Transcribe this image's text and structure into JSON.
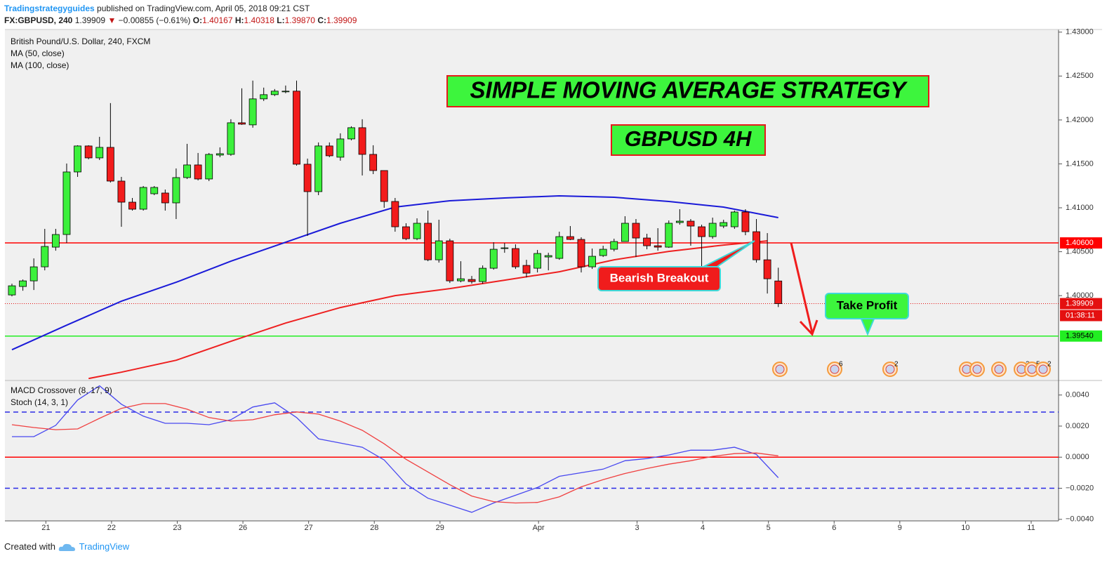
{
  "header": {
    "author": "Tradingstrategyguides",
    "published": "published on TradingView.com, April 05, 2018 09:21 CST",
    "symbol": "FX:GBPUSD, 240",
    "last": "1.39909",
    "arrow": "▼",
    "change": "−0.00855 (−0.61%)",
    "o_label": "O:",
    "o": "1.40167",
    "h_label": "H:",
    "h": "1.40318",
    "l_label": "L:",
    "l": "1.39870",
    "c_label": "C:",
    "c": "1.39909"
  },
  "footer": {
    "created": "Created with",
    "brand": "TradingView"
  },
  "chart_data": [
    {
      "type": "candlestick",
      "title": "British Pound/U.S. Dollar, 240, FXCM",
      "annotations": {
        "headline": "SIMPLE MOVING AVERAGE STRATEGY",
        "subheadline": "GBPUSD 4H",
        "breakout": "Bearish Breakout",
        "target": "Take Profit"
      },
      "x": [
        0,
        1,
        2,
        3,
        4,
        5,
        6,
        7,
        8,
        9,
        10,
        11,
        12,
        13,
        14,
        15,
        16,
        17,
        18,
        19,
        20,
        21,
        22,
        23,
        24,
        25,
        26,
        27,
        28,
        29,
        30,
        31,
        32,
        33,
        34,
        35,
        36,
        37,
        38,
        39,
        40,
        41,
        42,
        43,
        44,
        45,
        46,
        47,
        48,
        49,
        50,
        51,
        52,
        53,
        54,
        55,
        56,
        57,
        58,
        59,
        60,
        61,
        62,
        63,
        64,
        65,
        66,
        67,
        68,
        69,
        70
      ],
      "open": [
        1.40008,
        1.40104,
        1.40168,
        1.40328,
        1.40552,
        1.40696,
        1.41408,
        1.41704,
        1.41568,
        1.41688,
        1.41304,
        1.41064,
        1.40984,
        1.4116,
        1.41168,
        1.41056,
        1.41344,
        1.41488,
        1.41328,
        1.416,
        1.41608,
        1.41968,
        1.41944,
        1.4224,
        1.42288,
        1.4232,
        1.42328,
        1.41496,
        1.41184,
        1.41704,
        1.41576,
        1.41784,
        1.41912,
        1.41608,
        1.41424,
        1.41072,
        1.40784,
        1.40648,
        1.40824,
        1.40408,
        1.40624,
        1.40168,
        1.40184,
        1.4016,
        1.40312,
        1.40536,
        1.40536,
        1.40344,
        1.40312,
        1.4044,
        1.40424,
        1.40672,
        1.4064,
        1.40328,
        1.40456,
        1.40528,
        1.40616,
        1.40824,
        1.40656,
        1.40568,
        1.40552,
        1.40832,
        1.40848,
        1.40784,
        1.40672,
        1.40792,
        1.40784,
        1.40952,
        1.40728,
        1.40408,
        1.40167
      ],
      "high": [
        1.40136,
        1.40184,
        1.40424,
        1.4076,
        1.4076,
        1.41504,
        1.41712,
        1.41712,
        1.41808,
        1.42192,
        1.41352,
        1.41112,
        1.41248,
        1.41248,
        1.41208,
        1.41448,
        1.41728,
        1.41624,
        1.41624,
        1.41688,
        1.42008,
        1.4236,
        1.42448,
        1.42368,
        1.42352,
        1.42392,
        1.42448,
        1.4156,
        1.41744,
        1.41744,
        1.41848,
        1.41928,
        1.42008,
        1.41712,
        1.41424,
        1.41112,
        1.40824,
        1.4088,
        1.40968,
        1.40864,
        1.40648,
        1.40392,
        1.40224,
        1.40344,
        1.40608,
        1.406,
        1.40584,
        1.40408,
        1.4052,
        1.40488,
        1.40728,
        1.40792,
        1.40664,
        1.40536,
        1.40568,
        1.40648,
        1.40904,
        1.40872,
        1.40704,
        1.40768,
        1.40856,
        1.40984,
        1.40872,
        1.40808,
        1.40888,
        1.40864,
        1.40968,
        1.40984,
        1.40872,
        1.40712,
        1.40318
      ],
      "low": [
        1.39992,
        1.40056,
        1.40064,
        1.40288,
        1.40512,
        1.406,
        1.41352,
        1.41552,
        1.41544,
        1.41288,
        1.40784,
        1.40968,
        1.40968,
        1.41144,
        1.40968,
        1.40872,
        1.41328,
        1.41312,
        1.41304,
        1.41576,
        1.41592,
        1.41944,
        1.41912,
        1.42216,
        1.42272,
        1.42304,
        1.4148,
        1.4068,
        1.41144,
        1.41576,
        1.41536,
        1.41768,
        1.41368,
        1.41384,
        1.41,
        1.40728,
        1.40632,
        1.40632,
        1.40392,
        1.40376,
        1.40144,
        1.40152,
        1.40136,
        1.40136,
        1.40296,
        1.40488,
        1.40304,
        1.40208,
        1.40264,
        1.40288,
        1.40408,
        1.40632,
        1.40264,
        1.40304,
        1.4044,
        1.40504,
        1.40616,
        1.4044,
        1.40528,
        1.40512,
        1.40544,
        1.40808,
        1.40568,
        1.40184,
        1.40648,
        1.40768,
        1.4076,
        1.40688,
        1.40376,
        1.40024,
        1.3987
      ],
      "close": [
        1.40112,
        1.40168,
        1.40328,
        1.4056,
        1.40696,
        1.41408,
        1.41704,
        1.41568,
        1.41688,
        1.41304,
        1.41064,
        1.40984,
        1.41232,
        1.41232,
        1.41056,
        1.41344,
        1.41488,
        1.41328,
        1.41608,
        1.41616,
        1.41968,
        1.41952,
        1.4224,
        1.42288,
        1.42328,
        1.42328,
        1.41496,
        1.41184,
        1.41704,
        1.41592,
        1.41784,
        1.41912,
        1.41608,
        1.41424,
        1.41072,
        1.40784,
        1.40648,
        1.40824,
        1.40408,
        1.40624,
        1.40168,
        1.40192,
        1.4016,
        1.40312,
        1.40528,
        1.40544,
        1.40328,
        1.40256,
        1.4048,
        1.40456,
        1.40672,
        1.4064,
        1.40328,
        1.40448,
        1.40528,
        1.40616,
        1.40824,
        1.40656,
        1.40568,
        1.40552,
        1.40824,
        1.40848,
        1.40792,
        1.40672,
        1.40824,
        1.40832,
        1.40952,
        1.40728,
        1.40408,
        1.40192,
        1.39909
      ],
      "up_color": "#3cf03c",
      "down_color": "#f21c1c",
      "series": [
        {
          "name": "MA (50, close)",
          "color": "#1a1ad8",
          "x": [
            0,
            5,
            10,
            15,
            20,
            25,
            30,
            35,
            40,
            45,
            50,
            55,
            60,
            65,
            70
          ],
          "values": [
            1.39384,
            1.39664,
            1.39936,
            1.40152,
            1.40392,
            1.40608,
            1.40824,
            1.41008,
            1.4108,
            1.41112,
            1.41136,
            1.4112,
            1.41072,
            1.41008,
            1.40888
          ]
        },
        {
          "name": "MA (100, close)",
          "color": "#ee2020",
          "x": [
            7,
            10,
            15,
            20,
            25,
            30,
            35,
            40,
            45,
            50,
            55,
            60,
            65,
            69
          ],
          "values": [
            1.39056,
            1.39128,
            1.39264,
            1.3948,
            1.39688,
            1.39864,
            1.4,
            1.4008,
            1.40176,
            1.40272,
            1.40408,
            1.40504,
            1.40576,
            1.40624
          ]
        }
      ],
      "levels": [
        {
          "value": 1.406,
          "label": "1.40600",
          "color": "#ff0000"
        },
        {
          "value": 1.3954,
          "label": "1.39540",
          "color": "#22ee22"
        }
      ],
      "last_price": {
        "value": 1.39909,
        "label": "1.39909",
        "countdown": "01:38:11",
        "color": "#e41010"
      },
      "events": [
        6,
        2,
        2,
        5,
        2
      ],
      "xlim": [
        -0.64,
        95.6
      ],
      "ylim": [
        1.3905,
        1.4303
      ],
      "yticks": [
        {
          "value": 1.43,
          "label": "1.43000"
        },
        {
          "value": 1.425,
          "label": "1.42500"
        },
        {
          "value": 1.42,
          "label": "1.42000"
        },
        {
          "value": 1.415,
          "label": "1.41500"
        },
        {
          "value": 1.41,
          "label": "1.41000"
        },
        {
          "value": 1.405,
          "label": "1.40500"
        },
        {
          "value": 1.4,
          "label": "1.40000"
        }
      ]
    },
    {
      "type": "line",
      "title": "MACD Crossover (8, 17, 9)",
      "subtitle": "Stoch (14, 3, 1)",
      "x": [
        0,
        2,
        4,
        6,
        8,
        10,
        12,
        14,
        16,
        18,
        20,
        22,
        24,
        26,
        28,
        30,
        32,
        34,
        36,
        38,
        40,
        42,
        44,
        46,
        48,
        50,
        52,
        54,
        56,
        58,
        60,
        62,
        64,
        66,
        68,
        70
      ],
      "series": [
        {
          "color": "#4848f0",
          "values": [
            0.00132,
            0.00132,
            0.00205,
            0.00368,
            0.00459,
            0.00341,
            0.00264,
            0.00218,
            0.00218,
            0.00209,
            0.00241,
            0.00323,
            0.0035,
            0.00255,
            0.00118,
            0.00091,
            0.00064,
            -0.00018,
            -0.00173,
            -0.00264,
            -0.00309,
            -0.00355,
            -0.00295,
            -0.00245,
            -0.00195,
            -0.00123,
            -0.001,
            -0.00077,
            -0.00023,
            -9e-05,
            0.00014,
            0.00045,
            0.00045,
            0.00064,
            0.00018,
            -0.00132
          ]
        },
        {
          "color": "#f04040",
          "values": [
            0.00209,
            0.00191,
            0.00177,
            0.00182,
            0.0025,
            0.00314,
            0.00345,
            0.00345,
            0.00309,
            0.00255,
            0.00232,
            0.00241,
            0.00273,
            0.00291,
            0.00277,
            0.00232,
            0.00173,
            0.00086,
            -0.00014,
            -0.00095,
            -0.00177,
            -0.0025,
            -0.00286,
            -0.00295,
            -0.00291,
            -0.00255,
            -0.00191,
            -0.00145,
            -0.00105,
            -0.00073,
            -0.00045,
            -0.00023,
            5e-05,
            0.00023,
            0.00027,
            9e-05
          ]
        }
      ],
      "levels": [
        {
          "value": 0.0029,
          "color": "#2a2ae6",
          "dash": true
        },
        {
          "value": 0,
          "color": "#ff0000",
          "dash": false
        },
        {
          "value": -0.002,
          "color": "#2a2ae6",
          "dash": true
        }
      ],
      "xlim": [
        -0.64,
        95.6
      ],
      "ylim": [
        -0.0041,
        0.0048
      ],
      "yticks": [
        {
          "value": 0.004,
          "label": "0.0040"
        },
        {
          "value": 0.002,
          "label": "0.0020"
        },
        {
          "value": 0,
          "label": "0.0000"
        },
        {
          "value": -0.002,
          "label": "−0.0020"
        },
        {
          "value": -0.004,
          "label": "−0.0040"
        }
      ],
      "xticks": [
        {
          "value": 3.1,
          "label": "21"
        },
        {
          "value": 9.1,
          "label": "22"
        },
        {
          "value": 15.1,
          "label": "23"
        },
        {
          "value": 21.1,
          "label": "26"
        },
        {
          "value": 27.1,
          "label": "27"
        },
        {
          "value": 33.1,
          "label": "28"
        },
        {
          "value": 39.1,
          "label": "29"
        },
        {
          "value": 48.1,
          "label": "Apr"
        },
        {
          "value": 57.1,
          "label": "3"
        },
        {
          "value": 63.1,
          "label": "4"
        },
        {
          "value": 69.1,
          "label": "5"
        },
        {
          "value": 75.1,
          "label": "6"
        },
        {
          "value": 81.1,
          "label": "9"
        },
        {
          "value": 87.1,
          "label": "10"
        },
        {
          "value": 93.1,
          "label": "11"
        }
      ]
    }
  ]
}
